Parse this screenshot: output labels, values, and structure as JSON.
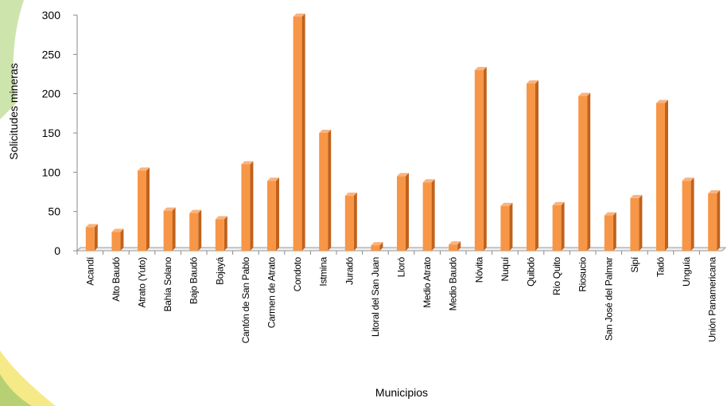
{
  "chart_data": {
    "type": "bar",
    "y_label": "Solicitudes mineras",
    "x_label": "Municipios",
    "categories": [
      "Acandí",
      "Alto Baudó",
      "Atrato (Yuto)",
      "Bahía Solano",
      "Bajo Baudó",
      "Bojayá",
      "Cantón de San Pablo",
      "Carmen de Atrato",
      "Condoto",
      "Istmina",
      "Juradó",
      "Litoral del San Juan",
      "Lloró",
      "Medio Atrato",
      "Medio Baudó",
      "Nóvita",
      "Nuquí",
      "Quibdó",
      "Río Quito",
      "Riosucio",
      "San José del Palmar",
      "Sipí",
      "Tadó",
      "Unguía",
      "Unión Panamericana"
    ],
    "values": [
      30,
      24,
      102,
      51,
      48,
      40,
      110,
      89,
      298,
      150,
      70,
      7,
      95,
      87,
      8,
      230,
      57,
      213,
      58,
      197,
      45,
      67,
      188,
      89,
      73
    ],
    "color": "#f79646",
    "ylim": [
      0,
      300
    ],
    "yticks": [
      0,
      50,
      100,
      150,
      200,
      250,
      300
    ]
  }
}
